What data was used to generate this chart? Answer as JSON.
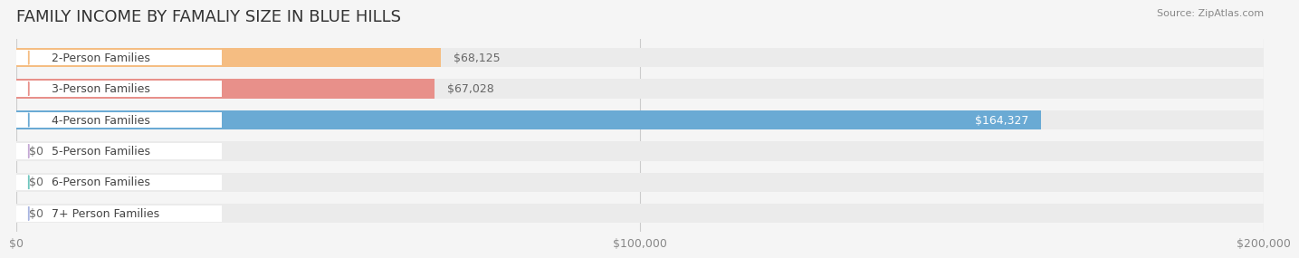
{
  "title": "FAMILY INCOME BY FAMALIY SIZE IN BLUE HILLS",
  "source": "Source: ZipAtlas.com",
  "categories": [
    "2-Person Families",
    "3-Person Families",
    "4-Person Families",
    "5-Person Families",
    "6-Person Families",
    "7+ Person Families"
  ],
  "values": [
    68125,
    67028,
    164327,
    0,
    0,
    0
  ],
  "bar_colors": [
    "#f5bd82",
    "#e8908a",
    "#6aaad4",
    "#c4a8d4",
    "#6ec6be",
    "#a8b4e0"
  ],
  "label_colors": [
    "#f5bd82",
    "#e8908a",
    "#6aaad4",
    "#c4a8d4",
    "#6ec6be",
    "#a8b4e0"
  ],
  "value_labels": [
    "$68,125",
    "$67,028",
    "$164,327",
    "$0",
    "$0",
    "$0"
  ],
  "xmax": 200000,
  "xticks": [
    0,
    100000,
    200000
  ],
  "xticklabels": [
    "$0",
    "$100,000",
    "$200,000"
  ],
  "background_color": "#f5f5f5",
  "bar_bg_color": "#ebebeb",
  "title_fontsize": 13,
  "label_fontsize": 9,
  "value_fontsize": 9,
  "source_fontsize": 8
}
